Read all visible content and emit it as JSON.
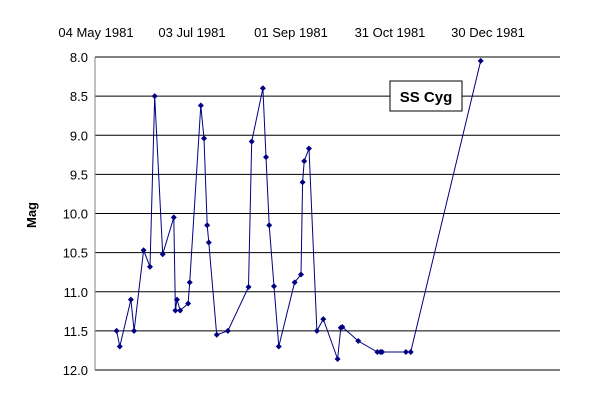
{
  "chart_data": {
    "type": "line",
    "ylabel": "Mag",
    "y_inverted": true,
    "ylim": [
      8.0,
      12.0
    ],
    "y_ticks": [
      "8.0",
      "8.5",
      "9.0",
      "9.5",
      "10.0",
      "10.5",
      "11.0",
      "11.5",
      "12.0"
    ],
    "x_tick_labels": [
      "04 May 1981",
      "03 Jul 1981",
      "01 Sep 1981",
      "31 Oct 1981",
      "30 Dec 1981"
    ],
    "x_axis_position": "top",
    "grid": "horizontal",
    "annotation": "SS Cyg",
    "colors": {
      "series": "#000080",
      "grid": "#000000"
    },
    "series": [
      {
        "x": [
          "1981-05-27",
          "1981-05-29",
          "1981-06-05",
          "1981-06-07",
          "1981-06-13",
          "1981-06-17",
          "1981-06-20",
          "1981-06-25",
          "1981-07-02",
          "1981-07-03",
          "1981-07-04",
          "1981-07-06",
          "1981-07-11",
          "1981-07-12",
          "1981-07-19",
          "1981-07-21",
          "1981-07-23",
          "1981-07-24",
          "1981-07-29",
          "1981-08-05",
          "1981-08-18",
          "1981-08-20",
          "1981-08-27",
          "1981-08-29",
          "1981-08-31",
          "1981-09-03",
          "1981-09-06",
          "1981-09-16",
          "1981-09-20",
          "1981-09-21",
          "1981-09-22",
          "1981-09-25",
          "1981-09-30",
          "1981-10-04",
          "1981-10-13",
          "1981-10-15",
          "1981-10-16",
          "1981-10-26",
          "1981-11-07",
          "1981-11-09",
          "1981-11-10",
          "1981-11-25",
          "1981-11-28",
          "1982-01-11"
        ],
        "values": [
          11.5,
          11.7,
          11.1,
          11.5,
          10.47,
          10.68,
          8.5,
          10.52,
          10.05,
          11.24,
          11.1,
          11.24,
          11.15,
          10.88,
          8.62,
          9.04,
          10.15,
          10.37,
          11.55,
          11.5,
          10.94,
          9.08,
          8.4,
          9.28,
          10.15,
          10.93,
          11.7,
          10.88,
          10.78,
          9.6,
          9.33,
          9.17,
          11.5,
          11.35,
          11.86,
          11.46,
          11.45,
          11.63,
          11.77,
          11.77,
          11.77,
          11.77,
          11.77,
          8.05
        ]
      }
    ]
  }
}
